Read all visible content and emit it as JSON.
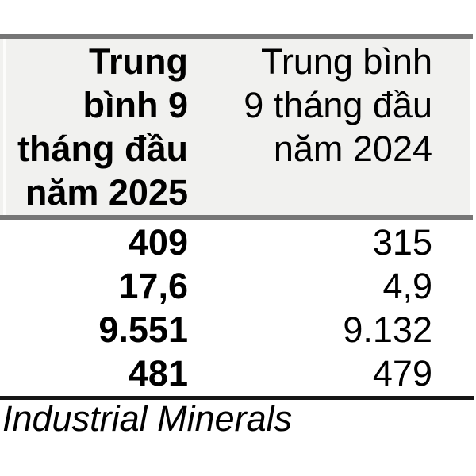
{
  "table": {
    "header": {
      "col_2025": {
        "full_text": "Trung bình 9 tháng đầu năm 2025",
        "lines": [
          "Trung",
          "bình 9",
          "tháng đầu",
          "năm 2025"
        ]
      },
      "col_2024": {
        "full_text": "Trung bình 9 tháng đầu năm 2024",
        "lines": [
          "Trung bình",
          "9 tháng đầu",
          "năm 2024"
        ]
      }
    },
    "rows": [
      {
        "avg_2025": "409",
        "avg_2024": "315"
      },
      {
        "avg_2025": "17,6",
        "avg_2024": "4,9"
      },
      {
        "avg_2025": "9.551",
        "avg_2024": "9.132"
      },
      {
        "avg_2025": "481",
        "avg_2024": "479"
      }
    ],
    "footer": {
      "source_label": "Industrial Minerals"
    }
  },
  "colors": {
    "header_bg": "#f1f1ef",
    "border_gray": "#767676",
    "border_black": "#161616",
    "text": "#000000"
  }
}
